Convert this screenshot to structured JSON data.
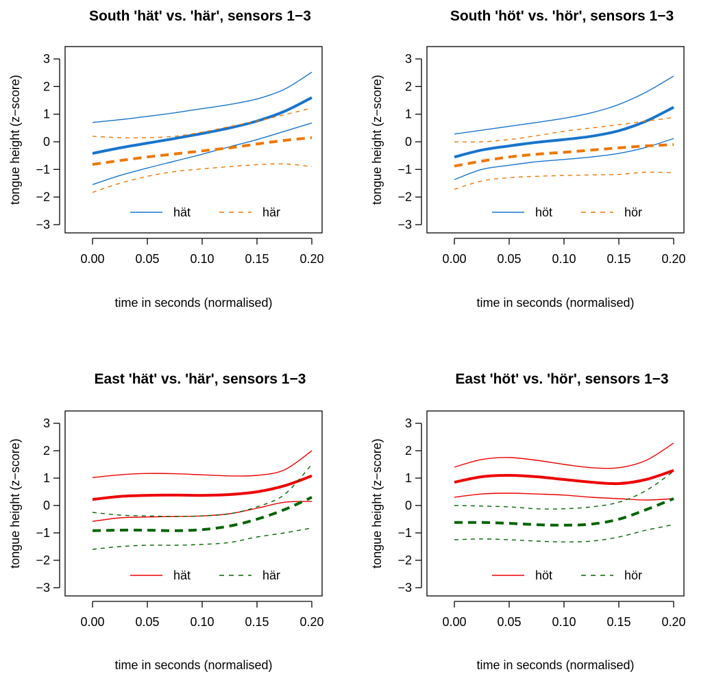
{
  "chart_data": [
    {
      "type": "line",
      "title": "South 'hät' vs. 'här', sensors 1−3",
      "xlabel": "time in seconds (normalised)",
      "ylabel": "tongue height (z−score)",
      "xlim": [
        0,
        0.2
      ],
      "ylim": [
        -3,
        3
      ],
      "xticks": [
        "0.00",
        "0.05",
        "0.10",
        "0.15",
        "0.20"
      ],
      "yticks": [
        "−3",
        "−2",
        "−1",
        "0",
        "1",
        "2",
        "3"
      ],
      "legend_position": "bottom-center",
      "grid": false,
      "x": [
        0,
        0.025,
        0.05,
        0.075,
        0.1,
        0.125,
        0.15,
        0.175,
        0.2
      ],
      "series": [
        {
          "name": "hät",
          "color": "#1874CD",
          "style": "solid",
          "fit": [
            -0.42,
            -0.22,
            -0.05,
            0.12,
            0.3,
            0.5,
            0.75,
            1.1,
            1.6
          ],
          "upper": [
            0.7,
            0.8,
            0.92,
            1.05,
            1.2,
            1.35,
            1.55,
            1.9,
            2.52
          ],
          "lower": [
            -1.55,
            -1.22,
            -0.95,
            -0.7,
            -0.45,
            -0.18,
            0.08,
            0.38,
            0.68
          ]
        },
        {
          "name": "här",
          "color": "#EE7600",
          "style": "dashed",
          "fit": [
            -0.82,
            -0.68,
            -0.55,
            -0.44,
            -0.33,
            -0.22,
            -0.08,
            0.05,
            0.15
          ],
          "upper": [
            0.2,
            0.15,
            0.15,
            0.2,
            0.35,
            0.55,
            0.75,
            0.98,
            1.22
          ],
          "lower": [
            -1.83,
            -1.5,
            -1.25,
            -1.08,
            -0.98,
            -0.9,
            -0.83,
            -0.8,
            -0.9
          ]
        }
      ]
    },
    {
      "type": "line",
      "title": "South 'höt' vs. 'hör', sensors 1−3",
      "xlabel": "time in seconds (normalised)",
      "ylabel": "tongue height (z−score)",
      "xlim": [
        0,
        0.2
      ],
      "ylim": [
        -3,
        3
      ],
      "xticks": [
        "0.00",
        "0.05",
        "0.10",
        "0.15",
        "0.20"
      ],
      "yticks": [
        "−3",
        "−2",
        "−1",
        "0",
        "1",
        "2",
        "3"
      ],
      "legend_position": "bottom-center",
      "grid": false,
      "x": [
        0,
        0.025,
        0.05,
        0.075,
        0.1,
        0.125,
        0.15,
        0.175,
        0.2
      ],
      "series": [
        {
          "name": "höt",
          "color": "#1874CD",
          "style": "solid",
          "fit": [
            -0.55,
            -0.3,
            -0.15,
            -0.02,
            0.08,
            0.2,
            0.4,
            0.75,
            1.25
          ],
          "upper": [
            0.28,
            0.42,
            0.56,
            0.7,
            0.85,
            1.05,
            1.35,
            1.8,
            2.38
          ],
          "lower": [
            -1.37,
            -1.0,
            -0.85,
            -0.72,
            -0.64,
            -0.55,
            -0.42,
            -0.2,
            0.12
          ]
        },
        {
          "name": "hör",
          "color": "#EE7600",
          "style": "dashed",
          "fit": [
            -0.88,
            -0.7,
            -0.55,
            -0.45,
            -0.38,
            -0.3,
            -0.22,
            -0.15,
            -0.1
          ],
          "upper": [
            0.0,
            0.0,
            0.08,
            0.22,
            0.38,
            0.5,
            0.62,
            0.75,
            0.88
          ],
          "lower": [
            -1.72,
            -1.42,
            -1.3,
            -1.25,
            -1.22,
            -1.2,
            -1.18,
            -1.1,
            -1.12
          ]
        }
      ]
    },
    {
      "type": "line",
      "title": "East 'hät' vs. 'här', sensors 1−3",
      "xlabel": "time in seconds (normalised)",
      "ylabel": "tongue height (z−score)",
      "xlim": [
        0,
        0.2
      ],
      "ylim": [
        -3,
        3
      ],
      "xticks": [
        "0.00",
        "0.05",
        "0.10",
        "0.15",
        "0.20"
      ],
      "yticks": [
        "−3",
        "−2",
        "−1",
        "0",
        "1",
        "2",
        "3"
      ],
      "legend_position": "bottom-center",
      "grid": false,
      "x": [
        0,
        0.025,
        0.05,
        0.075,
        0.1,
        0.125,
        0.15,
        0.175,
        0.2
      ],
      "series": [
        {
          "name": "hät",
          "color": "#EE0000",
          "style": "solid",
          "fit": [
            0.22,
            0.33,
            0.37,
            0.38,
            0.37,
            0.4,
            0.5,
            0.72,
            1.08
          ],
          "upper": [
            1.02,
            1.12,
            1.17,
            1.16,
            1.12,
            1.08,
            1.1,
            1.3,
            2.0
          ],
          "lower": [
            -0.58,
            -0.45,
            -0.42,
            -0.4,
            -0.38,
            -0.3,
            -0.1,
            0.12,
            0.15
          ]
        },
        {
          "name": "här",
          "color": "#006400",
          "style": "dashed",
          "fit": [
            -0.92,
            -0.9,
            -0.9,
            -0.92,
            -0.88,
            -0.75,
            -0.5,
            -0.15,
            0.3
          ],
          "upper": [
            -0.25,
            -0.35,
            -0.38,
            -0.4,
            -0.38,
            -0.3,
            -0.05,
            0.4,
            1.5
          ],
          "lower": [
            -1.6,
            -1.5,
            -1.45,
            -1.45,
            -1.42,
            -1.35,
            -1.15,
            -1.0,
            -0.82
          ]
        }
      ]
    },
    {
      "type": "line",
      "title": "East 'höt' vs. 'hör', sensors 1−3",
      "xlabel": "time in seconds (normalised)",
      "ylabel": "tongue height (z−score)",
      "xlim": [
        0,
        0.2
      ],
      "ylim": [
        -3,
        3
      ],
      "xticks": [
        "0.00",
        "0.05",
        "0.10",
        "0.15",
        "0.20"
      ],
      "yticks": [
        "−3",
        "−2",
        "−1",
        "0",
        "1",
        "2",
        "3"
      ],
      "legend_position": "bottom-center",
      "grid": false,
      "x": [
        0,
        0.025,
        0.05,
        0.075,
        0.1,
        0.125,
        0.15,
        0.175,
        0.2
      ],
      "series": [
        {
          "name": "höt",
          "color": "#EE0000",
          "style": "solid",
          "fit": [
            0.85,
            1.05,
            1.1,
            1.05,
            0.95,
            0.85,
            0.8,
            0.95,
            1.28
          ],
          "upper": [
            1.4,
            1.68,
            1.75,
            1.65,
            1.5,
            1.38,
            1.38,
            1.65,
            2.28
          ],
          "lower": [
            0.3,
            0.42,
            0.45,
            0.42,
            0.38,
            0.3,
            0.25,
            0.2,
            0.25
          ]
        },
        {
          "name": "hör",
          "color": "#006400",
          "style": "dashed",
          "fit": [
            -0.62,
            -0.62,
            -0.65,
            -0.7,
            -0.72,
            -0.68,
            -0.5,
            -0.15,
            0.25
          ],
          "upper": [
            0.0,
            -0.02,
            -0.05,
            -0.12,
            -0.12,
            -0.05,
            0.12,
            0.55,
            1.25
          ],
          "lower": [
            -1.25,
            -1.22,
            -1.25,
            -1.3,
            -1.33,
            -1.3,
            -1.15,
            -0.9,
            -0.7
          ]
        }
      ]
    }
  ]
}
